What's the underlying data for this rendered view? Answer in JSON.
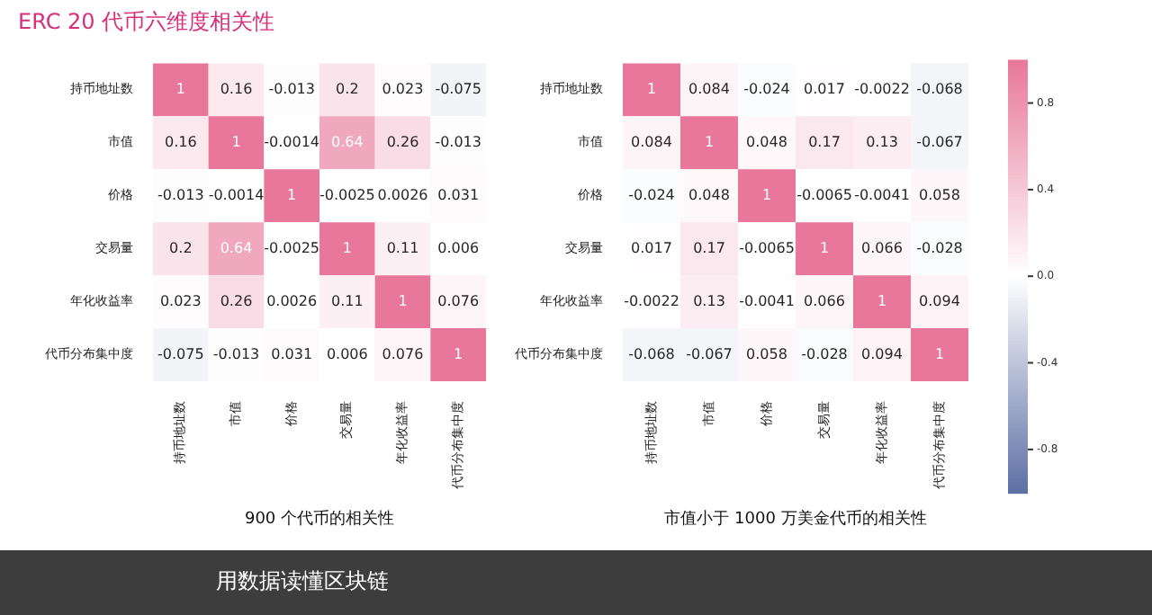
{
  "chart_data": [
    {
      "type": "heatmap",
      "title": "ERC 20 代币六维度相关性",
      "xlabel": "900 个代币的相关性",
      "categories": [
        "持币地址数",
        "市值",
        "价格",
        "交易量",
        "年化收益率",
        "代币分布集中度"
      ],
      "y_categories": [
        "持币地址数",
        "市值",
        "价格",
        "交易量",
        "年化收益率",
        "代币分布集中度"
      ],
      "cells": [
        [
          1,
          0.16,
          -0.013,
          0.2,
          0.023,
          -0.075
        ],
        [
          0.16,
          1,
          -0.0014,
          0.64,
          0.26,
          -0.013
        ],
        [
          -0.013,
          -0.0014,
          1,
          -0.0025,
          0.0026,
          0.031
        ],
        [
          0.2,
          0.64,
          -0.0025,
          1,
          0.11,
          0.006
        ],
        [
          0.023,
          0.26,
          0.0026,
          0.11,
          1,
          0.076
        ],
        [
          -0.075,
          -0.013,
          0.031,
          0.006,
          0.076,
          1
        ]
      ],
      "data_labels": true,
      "annotations": [
        "用数据读懂区块链"
      ]
    },
    {
      "type": "heatmap",
      "xlabel": "市值小于 1000 万美金代币的相关性",
      "categories": [
        "持币地址数",
        "市值",
        "价格",
        "交易量",
        "年化收益率",
        "代币分布集中度"
      ],
      "y_categories": [
        "持币地址数",
        "市值",
        "价格",
        "交易量",
        "年化收益率",
        "代币分布集中度"
      ],
      "cells": [
        [
          1,
          0.084,
          -0.024,
          0.017,
          -0.0022,
          -0.068
        ],
        [
          0.084,
          1,
          0.048,
          0.17,
          0.13,
          -0.067
        ],
        [
          -0.024,
          0.048,
          1,
          -0.0065,
          -0.0041,
          0.058
        ],
        [
          0.017,
          0.17,
          -0.0065,
          1,
          0.066,
          -0.028
        ],
        [
          -0.0022,
          0.13,
          -0.0041,
          0.066,
          1,
          0.094
        ],
        [
          -0.068,
          -0.067,
          0.058,
          -0.028,
          0.094,
          1
        ]
      ],
      "clim": [
        -1,
        1
      ],
      "cticks": [
        -0.8,
        -0.4,
        {
          "value": 0,
          "label": "0.0"
        },
        0.4,
        0.8
      ],
      "data_labels": true
    }
  ]
}
